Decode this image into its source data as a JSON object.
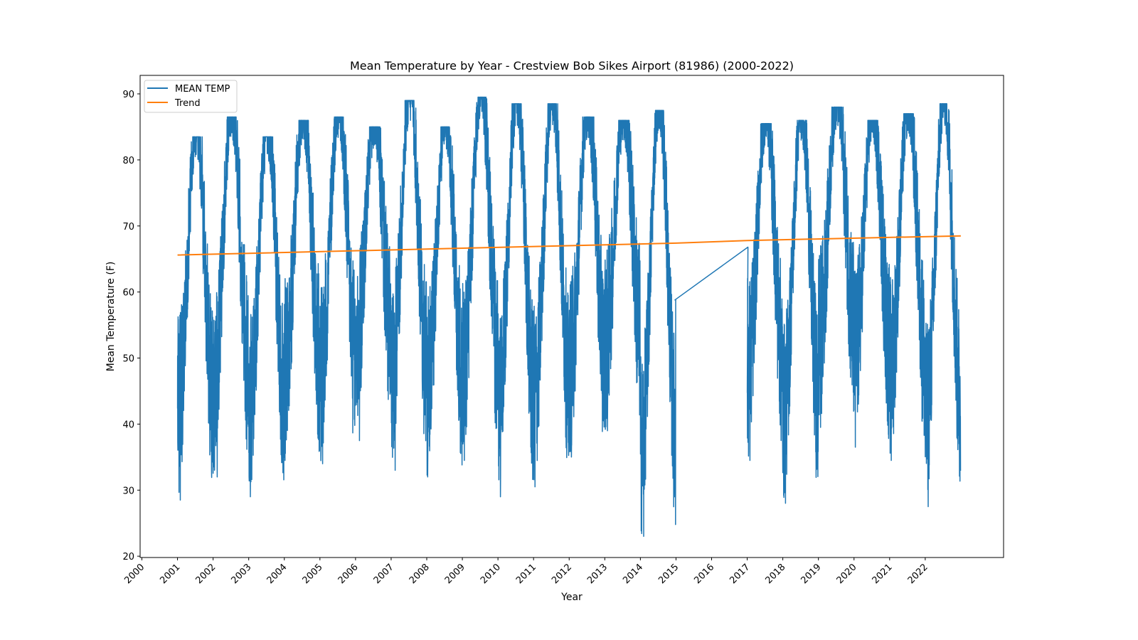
{
  "chart_data": {
    "type": "line",
    "title": "Mean Temperature by Year - Crestview Bob Sikes Airport (81986) (2000-2022)",
    "xlabel": "Year",
    "ylabel": "Mean Temperature (F)",
    "xlim": [
      1999.95,
      2024.2
    ],
    "ylim": [
      19.8,
      92.8
    ],
    "x_ticks": [
      "2000",
      "2001",
      "2002",
      "2003",
      "2004",
      "2005",
      "2006",
      "2007",
      "2008",
      "2009",
      "2010",
      "2011",
      "2012",
      "2013",
      "2014",
      "2015",
      "2016",
      "2017",
      "2018",
      "2019",
      "2020",
      "2021",
      "2022"
    ],
    "y_ticks": [
      20,
      30,
      40,
      50,
      60,
      70,
      80,
      90
    ],
    "grid": false,
    "legend_position": "upper-left",
    "series": [
      {
        "name": "MEAN TEMP",
        "color": "#1f77b4",
        "style": "daily-seasonal",
        "data_years": [
          2001,
          2002,
          2003,
          2004,
          2005,
          2006,
          2007,
          2008,
          2009,
          2010,
          2011,
          2012,
          2013,
          2014,
          2017,
          2018,
          2019,
          2020,
          2021,
          2022
        ],
        "yearly_max": [
          83.5,
          86.5,
          83.5,
          86.0,
          86.5,
          85.0,
          89.0,
          85.0,
          89.5,
          88.5,
          88.5,
          86.5,
          86.0,
          87.5,
          85.5,
          86.0,
          88.0,
          86.0,
          87.0,
          88.5
        ],
        "yearly_min": [
          28.5,
          32.0,
          29.0,
          34.5,
          34.0,
          37.5,
          33.0,
          32.0,
          34.5,
          29.0,
          30.5,
          35.0,
          39.0,
          23.0,
          34.5,
          28.0,
          39.5,
          36.5,
          34.5,
          27.5
        ],
        "gap": {
          "from": [
            2014.97,
            58.8
          ],
          "to": [
            2017.02,
            66.8
          ]
        }
      },
      {
        "name": "Trend",
        "color": "#ff7f0e",
        "x": [
          2001,
          2015,
          2017,
          2023
        ],
        "y": [
          65.6,
          67.4,
          67.8,
          68.5
        ]
      }
    ]
  },
  "legend": {
    "items": [
      {
        "label": "MEAN TEMP",
        "color": "#1f77b4"
      },
      {
        "label": "Trend",
        "color": "#ff7f0e"
      }
    ]
  }
}
